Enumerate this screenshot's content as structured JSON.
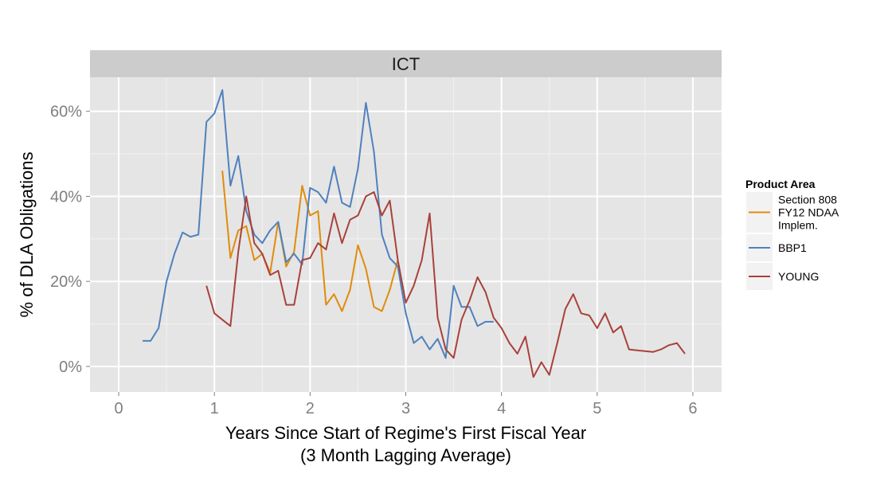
{
  "chart_data": {
    "type": "line",
    "facet": "ICT",
    "xlabel": "Years Since Start of Regime's First Fiscal Year",
    "xlabel_sub": "(3 Month Lagging Average)",
    "ylabel": "% of DLA Obligations",
    "xlim": [
      -0.3,
      6.3
    ],
    "ylim": [
      -6,
      68
    ],
    "x_ticks": [
      0,
      1,
      2,
      3,
      4,
      5,
      6
    ],
    "x_tick_labels": [
      "0",
      "1",
      "2",
      "3",
      "4",
      "5",
      "6"
    ],
    "y_ticks": [
      0,
      20,
      40,
      60
    ],
    "y_tick_labels": [
      "0%",
      "20%",
      "40%",
      "60%"
    ],
    "grid": true,
    "legend": {
      "title": "Product Area",
      "position": "right"
    },
    "series": [
      {
        "name": "Section 808 FY12 NDAA Implem.",
        "legend_lines": [
          "Section 808",
          "FY12 NDAA",
          "Implem."
        ],
        "color": "#e08c0b",
        "x": [
          1.083,
          1.167,
          1.25,
          1.333,
          1.417,
          1.5,
          1.583,
          1.667,
          1.75,
          1.833,
          1.917,
          2.0,
          2.083,
          2.167,
          2.25,
          2.333,
          2.417,
          2.5,
          2.583,
          2.667,
          2.75,
          2.833,
          2.917
        ],
        "y": [
          46,
          25.5,
          32,
          33,
          25,
          26.5,
          22,
          34,
          23.5,
          27,
          42.5,
          35.5,
          36.5,
          14.5,
          17,
          13,
          18,
          28.5,
          23,
          14,
          13,
          18,
          25
        ]
      },
      {
        "name": "BBP1",
        "legend_lines": [
          "BBP1"
        ],
        "color": "#4f81bd",
        "x": [
          0.25,
          0.333,
          0.417,
          0.5,
          0.583,
          0.667,
          0.75,
          0.833,
          0.917,
          1.0,
          1.083,
          1.167,
          1.25,
          1.333,
          1.417,
          1.5,
          1.583,
          1.667,
          1.75,
          1.833,
          1.917,
          2.0,
          2.083,
          2.167,
          2.25,
          2.333,
          2.417,
          2.5,
          2.583,
          2.667,
          2.75,
          2.833,
          2.917,
          3.0,
          3.083,
          3.167,
          3.25,
          3.333,
          3.417,
          3.5,
          3.583,
          3.667,
          3.75,
          3.833,
          3.917
        ],
        "y": [
          6,
          6,
          9,
          20,
          26.5,
          31.5,
          30.5,
          31,
          57.5,
          59.5,
          65,
          42.5,
          49.5,
          36.5,
          31,
          29,
          32,
          34,
          24.5,
          26.5,
          24,
          42,
          41,
          38.5,
          47,
          38.5,
          37.5,
          46.5,
          62,
          50.5,
          31,
          25.5,
          23.5,
          12.5,
          5.5,
          7,
          4,
          6.5,
          2,
          19,
          14,
          14,
          9.5,
          10.5,
          10.5
        ]
      },
      {
        "name": "YOUNG",
        "legend_lines": [
          "YOUNG"
        ],
        "color": "#a9413a",
        "x": [
          0.917,
          1.0,
          1.083,
          1.167,
          1.25,
          1.333,
          1.417,
          1.5,
          1.583,
          1.667,
          1.75,
          1.833,
          1.917,
          2.0,
          2.083,
          2.167,
          2.25,
          2.333,
          2.417,
          2.5,
          2.583,
          2.667,
          2.75,
          2.833,
          2.917,
          3.0,
          3.083,
          3.167,
          3.25,
          3.333,
          3.417,
          3.5,
          3.583,
          3.667,
          3.75,
          3.833,
          3.917,
          4.0,
          4.083,
          4.167,
          4.25,
          4.333,
          4.417,
          4.5,
          4.583,
          4.667,
          4.75,
          4.833,
          4.917,
          5.0,
          5.083,
          5.167,
          5.25,
          5.333,
          5.417,
          5.5,
          5.583,
          5.667,
          5.75,
          5.833,
          5.917
        ],
        "y": [
          19,
          12.5,
          11,
          9.5,
          27,
          40,
          29,
          26.5,
          21.5,
          22.5,
          14.5,
          14.5,
          25,
          25.5,
          29,
          27.5,
          36,
          29,
          34.5,
          35.5,
          40,
          41,
          35.5,
          39,
          25,
          15,
          19,
          25,
          36,
          11.5,
          4,
          2,
          11,
          15.5,
          21,
          17.5,
          11.5,
          9,
          5.5,
          3,
          7,
          -2.5,
          1,
          -2,
          5.5,
          13.5,
          17,
          12.5,
          12,
          9,
          12.5,
          8,
          9.5,
          4,
          3.8,
          3.6,
          3.4,
          4,
          5,
          5.5,
          3
        ]
      }
    ]
  }
}
